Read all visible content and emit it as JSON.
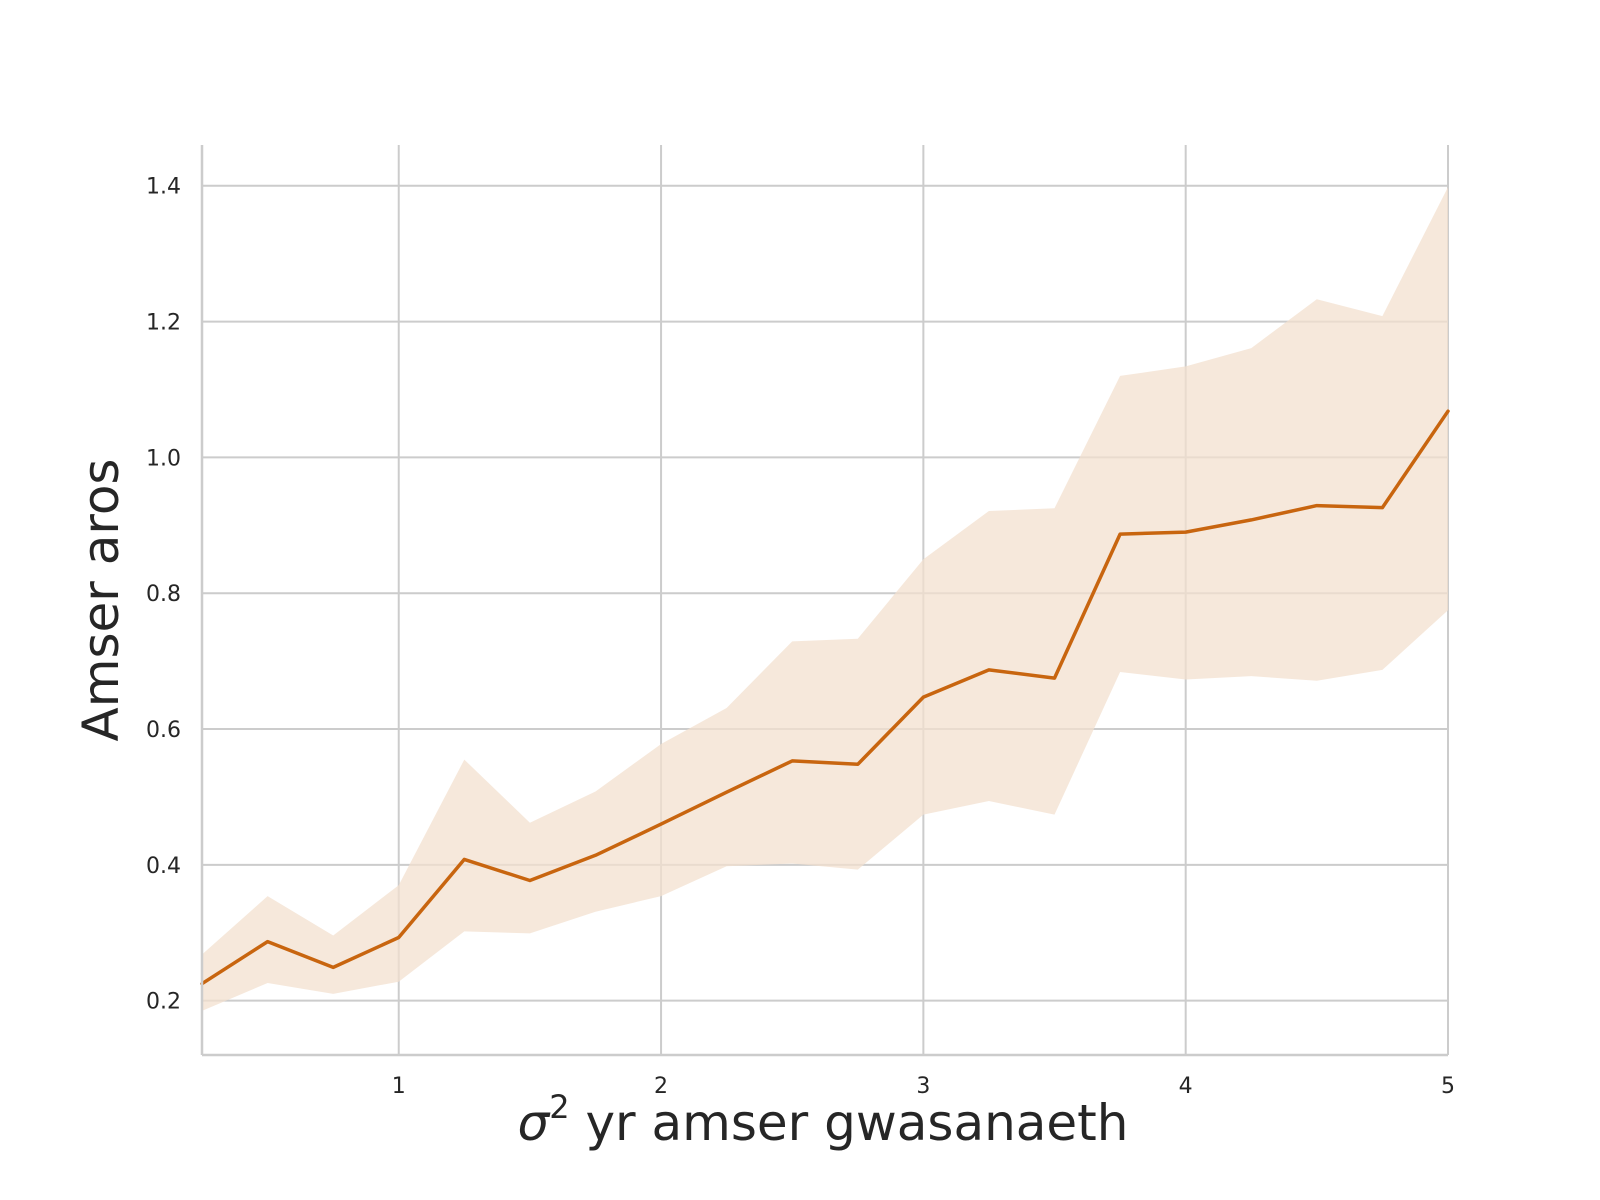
{
  "chart_data": {
    "type": "line",
    "title": "",
    "xlabel": {
      "symbol": "σ",
      "superscript": "2",
      "text": " yr amser gwasanaeth"
    },
    "ylabel": "Amser aros",
    "xlim": [
      0.25,
      5.0
    ],
    "ylim": [
      0.12,
      1.46
    ],
    "xticks": [
      1,
      2,
      3,
      4,
      5
    ],
    "xtick_labels": [
      "1",
      "2",
      "3",
      "4",
      "5"
    ],
    "yticks": [
      0.2,
      0.4,
      0.6,
      0.8,
      1.0,
      1.2,
      1.4
    ],
    "ytick_labels": [
      "0.2",
      "0.4",
      "0.6",
      "0.8",
      "1.0",
      "1.2",
      "1.4"
    ],
    "grid": true,
    "line_color": "#c8650f",
    "band_color": "#f3e0cf",
    "grid_color": "#cccccc",
    "spine_color": "#cccccc",
    "series": [
      {
        "x": [
          0.25,
          0.5,
          0.75,
          1.0,
          1.25,
          1.5,
          1.75,
          2.0,
          2.25,
          2.5,
          2.75,
          3.0,
          3.25,
          3.5,
          3.75,
          4.0,
          4.25,
          4.5,
          4.75,
          5.0
        ],
        "y": [
          0.225,
          0.287,
          0.249,
          0.293,
          0.408,
          0.377,
          0.414,
          0.46,
          0.507,
          0.553,
          0.548,
          0.647,
          0.687,
          0.675,
          0.887,
          0.89,
          0.908,
          0.929,
          0.926,
          1.068
        ],
        "lower": [
          0.185,
          0.226,
          0.21,
          0.228,
          0.302,
          0.299,
          0.331,
          0.354,
          0.398,
          0.402,
          0.393,
          0.474,
          0.494,
          0.474,
          0.684,
          0.673,
          0.678,
          0.671,
          0.687,
          0.775
        ],
        "upper": [
          0.268,
          0.354,
          0.296,
          0.37,
          0.555,
          0.462,
          0.508,
          0.578,
          0.631,
          0.729,
          0.733,
          0.85,
          0.921,
          0.925,
          1.12,
          1.134,
          1.161,
          1.233,
          1.208,
          1.398
        ]
      }
    ]
  }
}
